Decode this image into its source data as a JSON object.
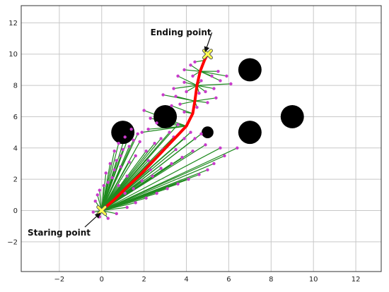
{
  "chart_data": {
    "type": "scatter",
    "xlim": [
      -3.8,
      13.2
    ],
    "ylim": [
      -3.9,
      13.1
    ],
    "x_ticks": [
      -2,
      0,
      2,
      4,
      6,
      8,
      10,
      12
    ],
    "y_ticks": [
      -2,
      0,
      2,
      4,
      6,
      8,
      10,
      12
    ],
    "grid": true,
    "colors": {
      "tree_edge": "#1f8a1f",
      "node": "#c83ccb",
      "path": "#ff0000",
      "obstacle": "#000000",
      "marker_fill": "#ffff4d",
      "grid": "#c8c8c8"
    },
    "start": {
      "x": 0,
      "y": 0
    },
    "goal": {
      "x": 5,
      "y": 10
    },
    "obstacles": [
      {
        "x": 1.0,
        "y": 5.0,
        "r": 0.55
      },
      {
        "x": 3.0,
        "y": 6.0,
        "r": 0.55
      },
      {
        "x": 5.0,
        "y": 5.0,
        "r": 0.28
      },
      {
        "x": 7.0,
        "y": 5.0,
        "r": 0.55
      },
      {
        "x": 7.0,
        "y": 9.0,
        "r": 0.55
      },
      {
        "x": 9.0,
        "y": 6.0,
        "r": 0.55
      }
    ],
    "path": [
      [
        0,
        0
      ],
      [
        0.6,
        0.7
      ],
      [
        1.2,
        1.5
      ],
      [
        1.9,
        2.4
      ],
      [
        2.6,
        3.4
      ],
      [
        3.3,
        4.4
      ],
      [
        4.0,
        5.4
      ],
      [
        4.3,
        6.2
      ],
      [
        4.4,
        7.0
      ],
      [
        4.5,
        8.0
      ],
      [
        4.65,
        8.9
      ],
      [
        4.85,
        9.6
      ],
      [
        5,
        10
      ]
    ],
    "tree_from_start": [
      [
        -0.3,
        0.6
      ],
      [
        -0.2,
        1.0
      ],
      [
        -0.1,
        1.3
      ],
      [
        0.1,
        1.6
      ],
      [
        0.3,
        1.8
      ],
      [
        0.5,
        2.1
      ],
      [
        0.2,
        2.4
      ],
      [
        0.6,
        2.6
      ],
      [
        0.4,
        3.0
      ],
      [
        0.7,
        3.2
      ],
      [
        0.9,
        3.5
      ],
      [
        0.6,
        3.8
      ],
      [
        1.0,
        3.9
      ],
      [
        0.8,
        4.3
      ],
      [
        1.3,
        4.1
      ],
      [
        1.1,
        4.7
      ],
      [
        1.5,
        4.5
      ],
      [
        1.7,
        4.9
      ],
      [
        1.4,
        5.2
      ],
      [
        0.3,
        -0.5
      ],
      [
        0.7,
        -0.2
      ],
      [
        1.2,
        0.2
      ],
      [
        1.6,
        0.5
      ],
      [
        2.1,
        0.8
      ],
      [
        2.6,
        1.1
      ],
      [
        3.1,
        1.4
      ],
      [
        3.6,
        1.7
      ],
      [
        4.1,
        2.0
      ],
      [
        4.6,
        2.3
      ],
      [
        5.0,
        2.6
      ],
      [
        5.3,
        3.0
      ],
      [
        5.8,
        3.5
      ],
      [
        6.4,
        4.0
      ],
      [
        5.6,
        4.0
      ],
      [
        4.9,
        4.2
      ],
      [
        4.3,
        3.8
      ],
      [
        3.8,
        3.4
      ],
      [
        3.3,
        3.0
      ],
      [
        2.8,
        2.7
      ],
      [
        2.4,
        2.2
      ],
      [
        1.9,
        1.9
      ],
      [
        1.5,
        1.4
      ],
      [
        1.1,
        1.1
      ],
      [
        2.2,
        3.2
      ],
      [
        2.5,
        4.3
      ],
      [
        2.1,
        3.8
      ],
      [
        1.8,
        4.4
      ],
      [
        2.8,
        4.6
      ],
      [
        3.2,
        5.0
      ],
      [
        3.6,
        5.5
      ],
      [
        3.4,
        4.7
      ],
      [
        2.9,
        3.9
      ],
      [
        3.9,
        4.6
      ],
      [
        4.2,
        5.0
      ],
      [
        4.4,
        4.6
      ],
      [
        4.7,
        4.9
      ],
      [
        1.3,
        3.1
      ],
      [
        1.6,
        3.5
      ],
      [
        0.9,
        2.8
      ],
      [
        1.2,
        2.2
      ],
      [
        0.8,
        1.6
      ],
      [
        2.3,
        2.6
      ],
      [
        -0.4,
        -0.1
      ],
      [
        -0.1,
        -0.4
      ],
      [
        3.5,
        3.9
      ]
    ],
    "tree_from_path": [
      [
        2.0,
        6.4
      ],
      [
        2.9,
        7.4
      ],
      [
        3.4,
        7.8
      ],
      [
        3.9,
        8.2
      ],
      [
        4.3,
        8.6
      ],
      [
        4.2,
        9.3
      ],
      [
        4.4,
        9.5
      ],
      [
        3.9,
        9.0
      ],
      [
        5.5,
        8.9
      ],
      [
        5.9,
        8.6
      ],
      [
        6.1,
        8.1
      ],
      [
        5.6,
        8.3
      ],
      [
        5.3,
        7.8
      ],
      [
        4.9,
        7.6
      ],
      [
        5.4,
        7.2
      ],
      [
        5.0,
        6.9
      ],
      [
        3.7,
        6.8
      ],
      [
        3.5,
        7.3
      ],
      [
        3.3,
        6.7
      ],
      [
        4.6,
        7.5
      ],
      [
        3.6,
        8.6
      ],
      [
        4.0,
        7.6
      ],
      [
        4.7,
        8.3
      ],
      [
        5.2,
        8.6
      ],
      [
        4.5,
        6.6
      ],
      [
        3.9,
        6.3
      ],
      [
        2.2,
        5.2
      ],
      [
        2.6,
        5.6
      ],
      [
        2.3,
        5.9
      ],
      [
        1.9,
        5.0
      ]
    ],
    "annotations": [
      {
        "text": "Ending point",
        "tx": 2.3,
        "ty": 11.2,
        "ax": 4.9,
        "ay": 10.2
      },
      {
        "text": "Staring point",
        "tx": -3.5,
        "ty": -1.6,
        "ax": -0.1,
        "ay": -0.2
      }
    ]
  }
}
